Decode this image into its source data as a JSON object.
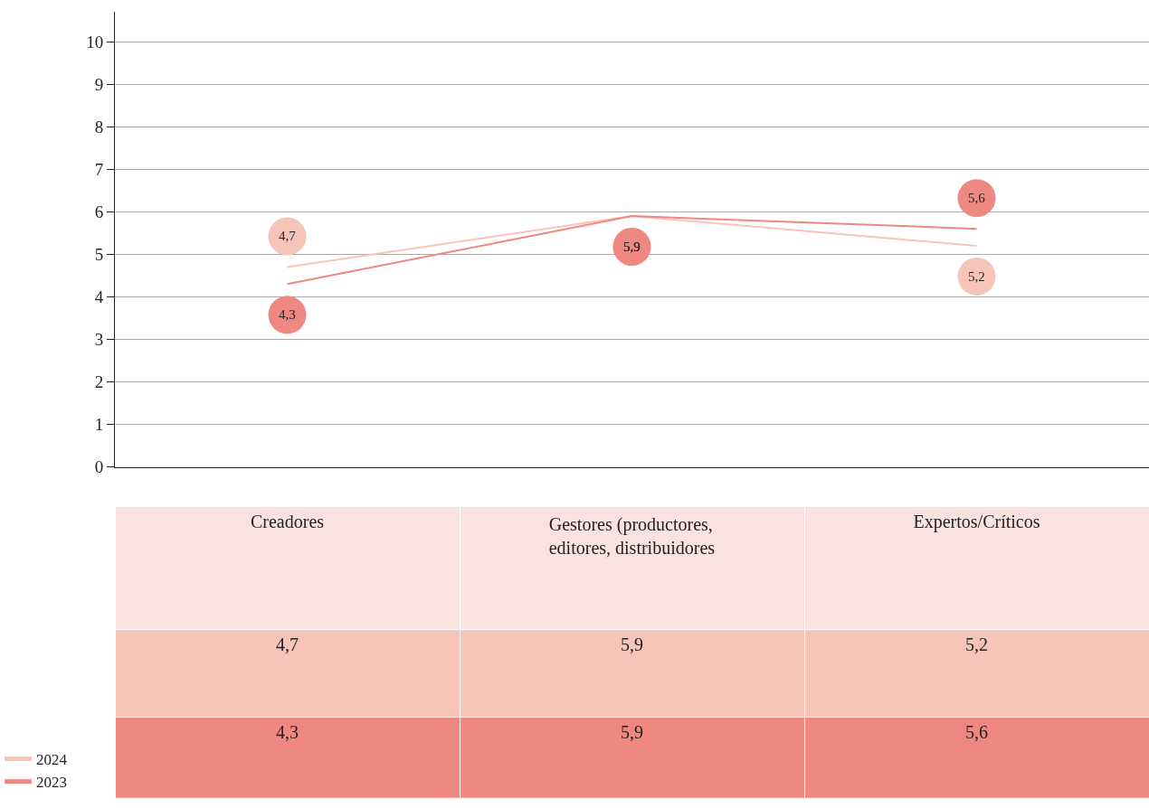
{
  "chart_data": {
    "type": "line",
    "categories": [
      "Creadores",
      "Gestores (productores,\neditores, distribuidores",
      "Expertos/Críticos"
    ],
    "series": [
      {
        "name": "2024",
        "color": "#f7c4ba",
        "values": [
          4.7,
          5.9,
          5.2
        ],
        "value_labels": [
          "4,7",
          "5,9",
          "5,2"
        ]
      },
      {
        "name": "2023",
        "color": "#ef8880",
        "values": [
          4.3,
          5.9,
          5.6
        ],
        "value_labels": [
          "4,3",
          "5,9",
          "5,6"
        ]
      }
    ],
    "ylim": [
      0,
      10.7
    ],
    "yticks": [
      0,
      1,
      2,
      3,
      4,
      5,
      6,
      7,
      8,
      9,
      10
    ],
    "grid": "y",
    "legend": "bottom left",
    "line_style": "solid"
  }
}
